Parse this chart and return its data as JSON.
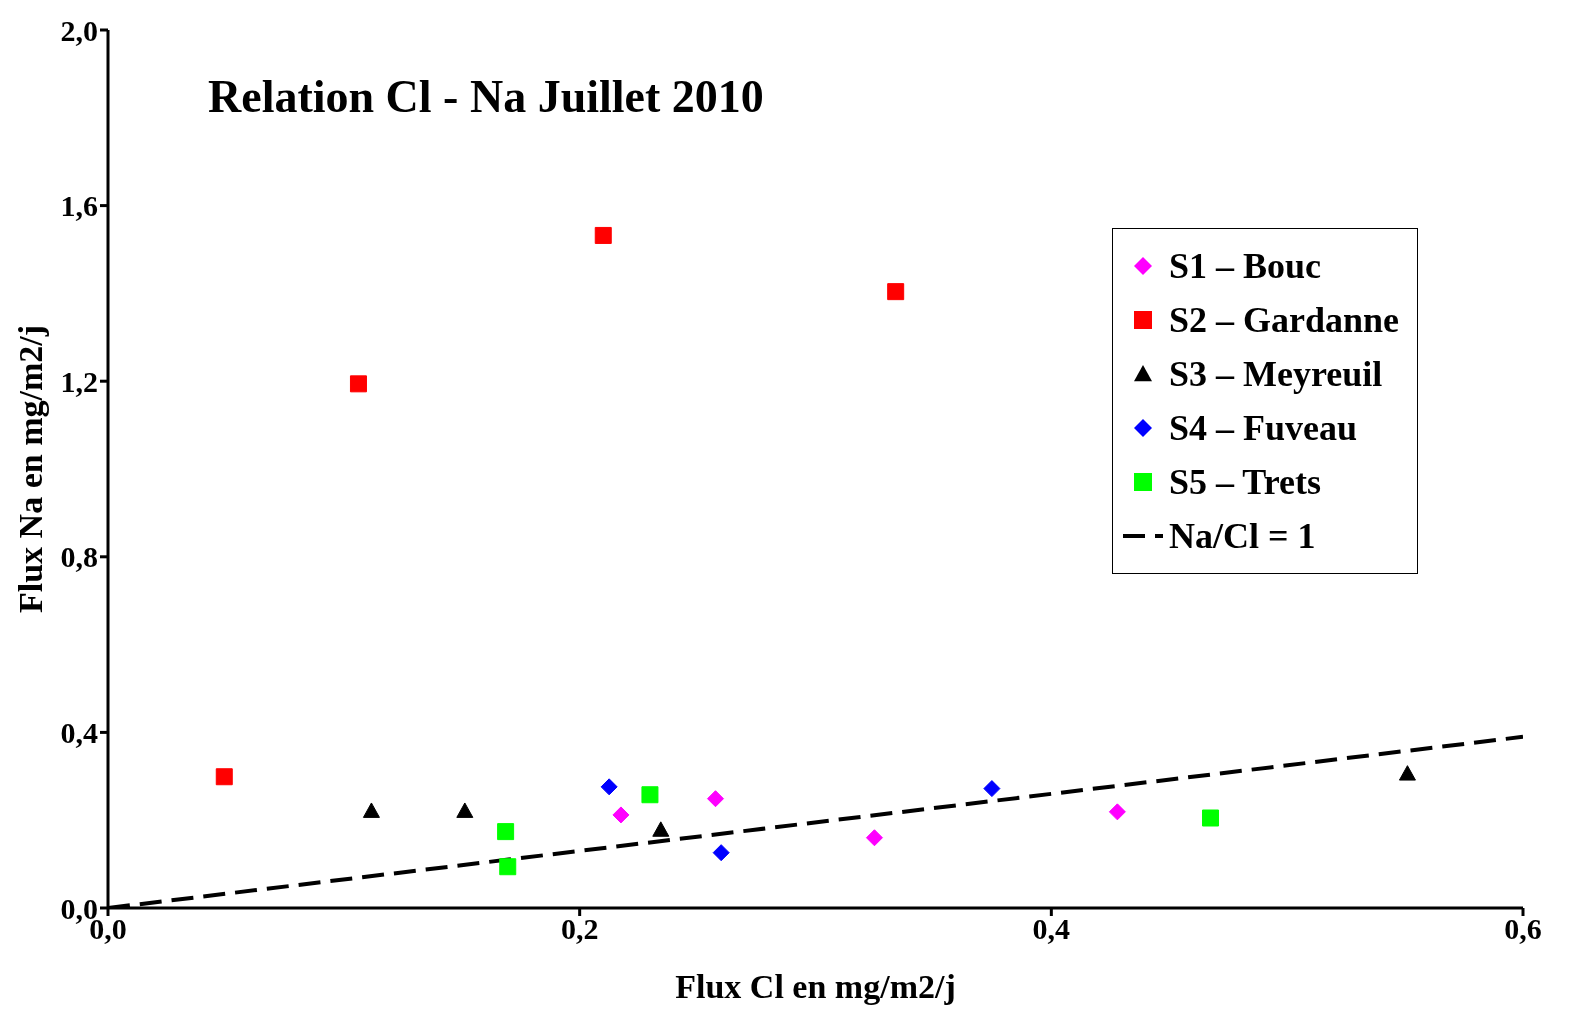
{
  "chart_data": {
    "type": "scatter",
    "title": "Relation Cl - Na Juillet 2010",
    "xlabel": "Flux Cl en mg/m2/j",
    "ylabel": "Flux Na en mg/m2/j",
    "xlim": [
      0,
      0.6
    ],
    "xticks": [
      {
        "value": 0,
        "label": "0,0"
      },
      {
        "value": 0.2,
        "label": "0,2"
      },
      {
        "value": 0.4,
        "label": "0,4"
      },
      {
        "value": 0.6,
        "label": "0,6"
      }
    ],
    "ylim": [
      0,
      2
    ],
    "yticks": [
      {
        "value": 0,
        "label": "0,0"
      },
      {
        "value": 0.4,
        "label": "0,4"
      },
      {
        "value": 0.8,
        "label": "0,8"
      },
      {
        "value": 1.2,
        "label": "1,2"
      },
      {
        "value": 1.6,
        "label": "1,6"
      },
      {
        "value": 2,
        "label": "2,0"
      }
    ],
    "grid": false,
    "legend": "top right",
    "series": [
      {
        "name": "S1 – Bouc",
        "color": "#ff00ff",
        "marker": "diamond",
        "x": [
          0.2175,
          0.2576,
          0.325,
          0.428
        ],
        "values": [
          0.212,
          0.249,
          0.16,
          0.219
        ]
      },
      {
        "name": "S2 – Gardanne",
        "color": "#ff0000",
        "marker": "square",
        "x": [
          0.0493,
          0.1062,
          0.21,
          0.334
        ],
        "values": [
          0.299,
          1.194,
          1.532,
          1.404
        ]
      },
      {
        "name": "S3 – Meyreuil",
        "color": "#000000",
        "marker": "triangle",
        "x": [
          0.1117,
          0.1513,
          0.2344,
          0.551
        ],
        "values": [
          0.221,
          0.221,
          0.178,
          0.306
        ]
      },
      {
        "name": "S4 – Fuveau",
        "color": "#0000ff",
        "marker": "diamond",
        "x": [
          0.2125,
          0.26,
          0.3748
        ],
        "values": [
          0.276,
          0.126,
          0.272
        ]
      },
      {
        "name": "S5 – Trets",
        "color": "#00ff00",
        "marker": "square",
        "x": [
          0.1686,
          0.1695,
          0.2298,
          0.4675
        ],
        "values": [
          0.174,
          0.094,
          0.258,
          0.205
        ]
      },
      {
        "name": "Na/Cl = 1",
        "type": "line",
        "color": "#000000",
        "line_style": "dashed",
        "marker": "none",
        "x": [
          0,
          0.6
        ],
        "values": [
          0,
          0.39
        ]
      }
    ]
  }
}
